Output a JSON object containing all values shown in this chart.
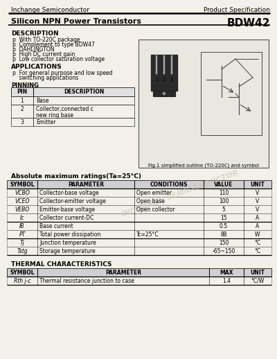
{
  "header_company": "Inchange Semiconductor",
  "header_right": "Product Specification",
  "title_left": "Silicon NPN Power Transistors",
  "title_right": "BDW42",
  "bg_color": "#f5f5f0",
  "description_title": "DESCRIPTION",
  "description_items": [
    "p  With TO-220C package",
    "p  Complement to type BDW47",
    "p  DAHLINGTON",
    "p  High DC current gain",
    "p  Low collector saturation voltage"
  ],
  "applications_title": "APPLICATIONS",
  "applications_items": [
    "p  For general purpose and low speed",
    "    switching applications"
  ],
  "pinning_title": "PINNING",
  "pin_headers": [
    "PIN",
    "DESCRIPTION"
  ],
  "pin_rows": [
    [
      "1",
      "Base"
    ],
    [
      "2",
      "Collector,connected c\nnew ring base"
    ],
    [
      "3",
      "Emitter"
    ]
  ],
  "fig_caption": "Fig.1 simplified outline (TO-220C) and symbol",
  "abs_title": "Absolute maximum ratings(Ta=25°C)",
  "abs_headers": [
    "SYMBOL",
    "PARAMETER",
    "CONDITIONS",
    "VALUE",
    "UNIT"
  ],
  "abs_rows": [
    [
      "VCBO",
      "Collector-base voltage",
      "Open emitter",
      "110",
      "V"
    ],
    [
      "VCEO",
      "Collector-emitter voltage",
      "Open base",
      "100",
      "V"
    ],
    [
      "VEBO",
      "Emitter-base voltage",
      "Open collector",
      "5",
      "V"
    ],
    [
      "Ic",
      "Collector current-DC",
      "",
      "15",
      "A"
    ],
    [
      "IB",
      "Base current",
      "",
      "0.5",
      "A"
    ],
    [
      "PT",
      "Total power dissipation",
      "Tc=25°C",
      "88",
      "W"
    ],
    [
      "Tj",
      "Junction temperature",
      "",
      "150",
      "°C"
    ],
    [
      "Tstg",
      "Storage temperature",
      "",
      "-65~150",
      "°C"
    ]
  ],
  "thermal_title": "THERMAL CHARACTERISTICS",
  "thermal_headers": [
    "SYMBOL",
    "PARAMETER",
    "MAX",
    "UNIT"
  ],
  "thermal_rows": [
    [
      "Rth j-c",
      "Thermal resistance junction to case",
      "1.4",
      "°C/W"
    ]
  ],
  "watermark": "INCHANGE SEMICONDUCTOR"
}
